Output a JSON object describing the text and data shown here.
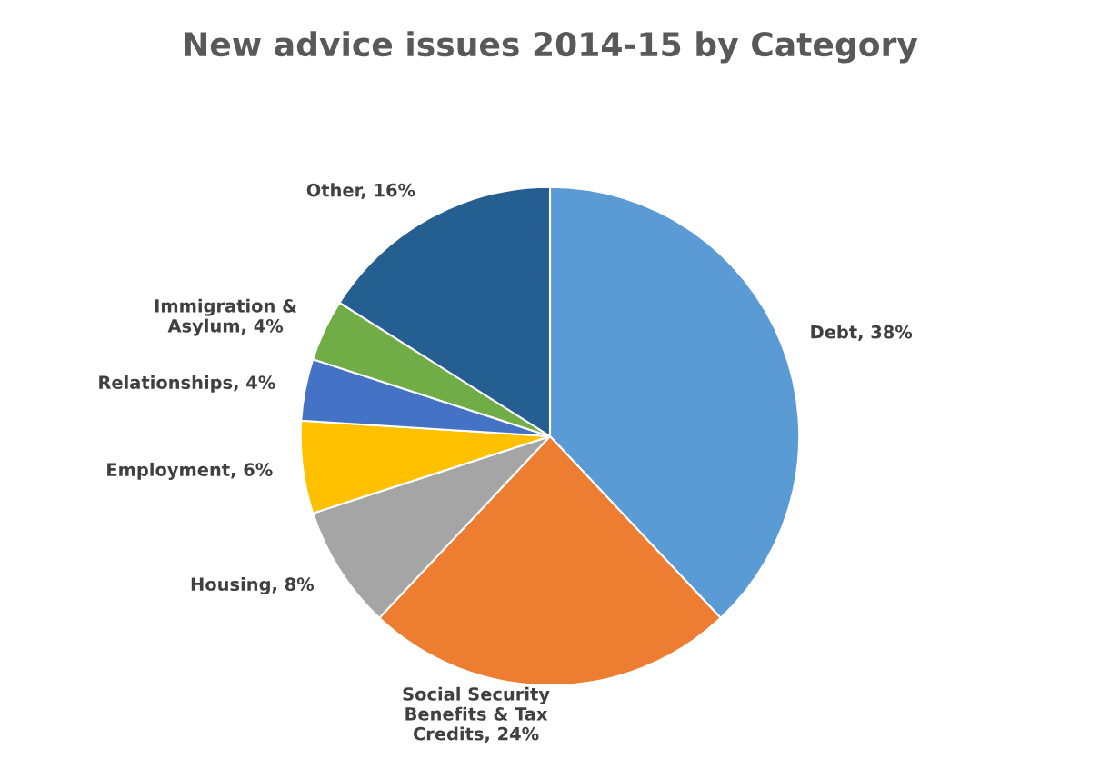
{
  "chart_data": {
    "type": "pie",
    "title": "New advice issues 2014-15 by Category",
    "categories": [
      "Debt",
      "Social Security\nBenefits & Tax\nCredits",
      "Housing",
      "Employment",
      "Relationships",
      "Immigration &\nAsylum",
      "Other"
    ],
    "values": [
      38,
      24,
      8,
      6,
      4,
      4,
      16
    ],
    "value_labels": [
      "38%",
      "24%",
      "8%",
      "6%",
      "4%",
      "4%",
      "16%"
    ],
    "colors": [
      "#5b9bd5",
      "#ed7d31",
      "#a5a5a5",
      "#ffc000",
      "#4472c4",
      "#70ad47",
      "#255e91"
    ],
    "legend": false
  }
}
